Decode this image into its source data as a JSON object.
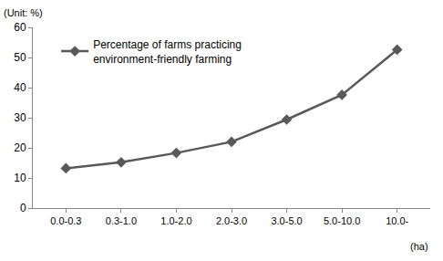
{
  "chart_data": {
    "type": "line",
    "y_label": "(Unit: %)",
    "x_label": "(ha)",
    "categories": [
      "0.0-0.3",
      "0.3-1.0",
      "1.0-2.0",
      "2.0-3.0",
      "3.0-5.0",
      "5.0-10.0",
      "10.0-"
    ],
    "series": [
      {
        "name": "Percentage of farms practicing environment-friendly farming",
        "color": "#595959",
        "marker": "diamond",
        "values": [
          13.2,
          15.2,
          18.3,
          22.0,
          29.4,
          37.6,
          52.6
        ]
      }
    ],
    "ylim": [
      0,
      60
    ],
    "yticks": [
      0,
      10,
      20,
      30,
      40,
      50,
      60
    ],
    "grid": false,
    "legend": "top-left"
  }
}
